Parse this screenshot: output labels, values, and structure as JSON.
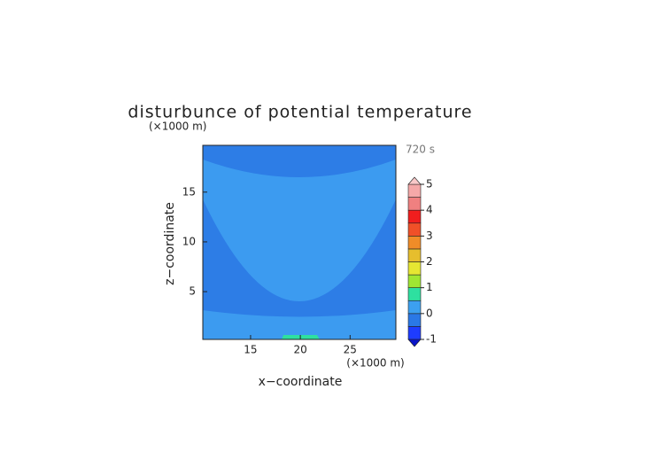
{
  "chart_data": {
    "type": "contour",
    "title": "disturbunce of potential temperature",
    "x_label": "x−coordinate",
    "y_label": "z−coordinate",
    "x_unit": "(×1000 m)",
    "y_unit": "(×1000 m)",
    "annotation": "720 s",
    "xlim": [
      10.2,
      29.6
    ],
    "ylim": [
      0.2,
      19.7
    ],
    "xticks": [
      15,
      20,
      25
    ],
    "yticks": [
      5,
      10,
      15
    ],
    "colorbar": {
      "levels": [
        -1,
        -0.5,
        0,
        0.5,
        1,
        1.5,
        2,
        2.5,
        3,
        3.5,
        4,
        4.5,
        5
      ],
      "colors": [
        "#1e3cff",
        "#2a78e6",
        "#3ca0f0",
        "#2ee0a0",
        "#a0e632",
        "#e6e632",
        "#e6be2d",
        "#f08c28",
        "#f05028",
        "#f01e1e",
        "#f08080",
        "#f5a8a8"
      ],
      "under_color": "#0a14c8",
      "over_color": "#fac8c8",
      "ticks": [
        -1,
        0,
        1,
        2,
        3,
        4,
        5
      ]
    }
  }
}
